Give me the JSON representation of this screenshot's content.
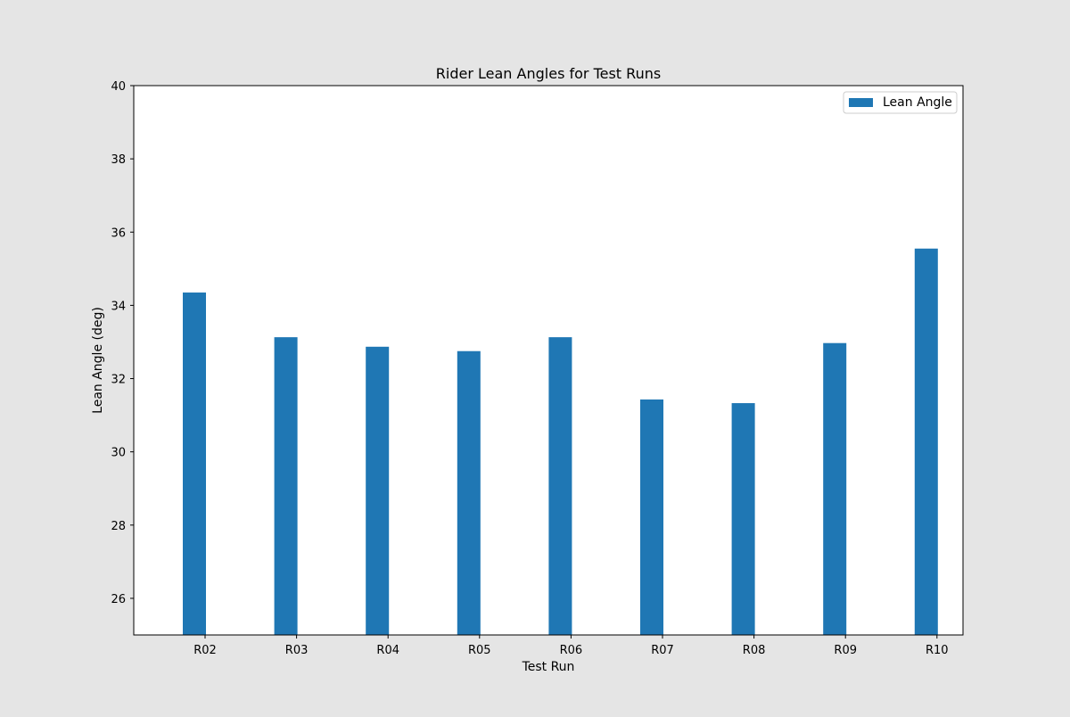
{
  "chart_data": {
    "type": "bar",
    "title": "Rider Lean Angles for Test Runs",
    "xlabel": "Test Run",
    "ylabel": "Lean Angle (deg)",
    "categories": [
      "R02",
      "R03",
      "R04",
      "R05",
      "R06",
      "R07",
      "R08",
      "R09",
      "R10"
    ],
    "series": [
      {
        "name": "Lean Angle",
        "values": [
          34.35,
          33.13,
          32.87,
          32.75,
          33.13,
          31.43,
          31.33,
          32.97,
          35.55
        ]
      }
    ],
    "ylim": [
      25,
      40
    ],
    "yticks": [
      26,
      28,
      30,
      32,
      34,
      36,
      38,
      40
    ],
    "grid": false,
    "legend_position": "top-right",
    "colors": {
      "bar": "#1f77b4",
      "figure_background": "#e5e5e5",
      "plot_background": "#ffffff",
      "axis": "#000000"
    }
  }
}
